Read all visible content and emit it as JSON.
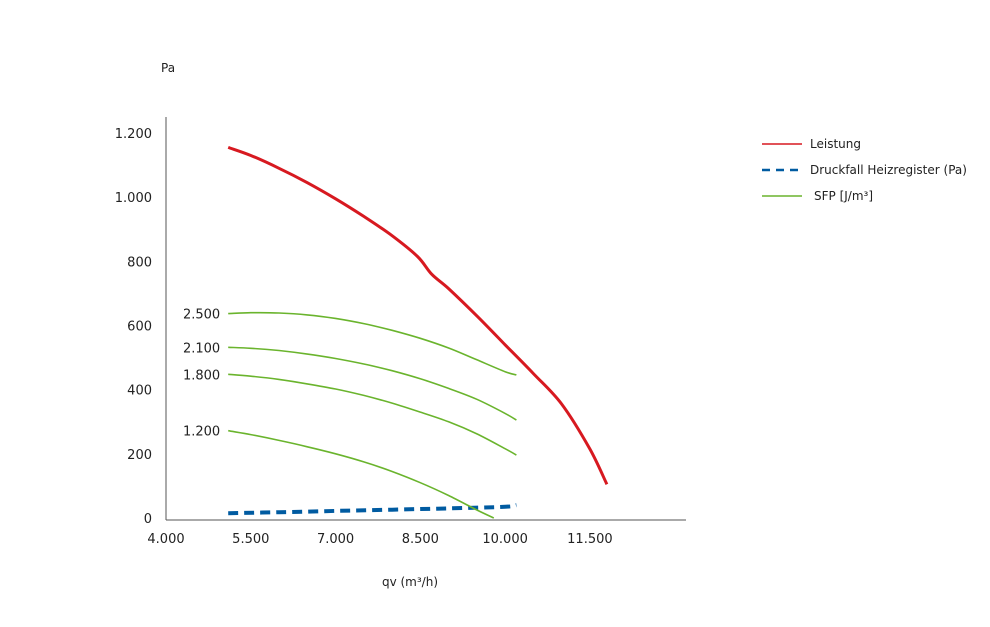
{
  "chart_data": {
    "type": "line",
    "ylabel": "Pa",
    "xlabel": "qv (m³/h)",
    "xlim": [
      4000,
      13200
    ],
    "ylim": [
      0,
      1250
    ],
    "x_ticks": [
      4000,
      5500,
      7000,
      8500,
      10000,
      11500
    ],
    "x_tick_labels": [
      "4.000",
      "5.500",
      "7.000",
      "8.500",
      "10.000",
      "11.500"
    ],
    "y_ticks": [
      0,
      200,
      400,
      600,
      800,
      1000,
      1200
    ],
    "y_tick_labels": [
      "0",
      "200",
      "400",
      "600",
      "800",
      "1.000",
      "1.200"
    ],
    "legend": {
      "placement": "right",
      "items": [
        {
          "label": "Leistung",
          "style": "solid",
          "color": "#d71920"
        },
        {
          "label": "Druckfall Heizregister (Pa)",
          "style": "dashed",
          "color": "#005ba1"
        },
        {
          "label": "SFP [J/m³]",
          "style": "solid",
          "color": "#6ab42d"
        }
      ]
    },
    "series": [
      {
        "name": "Leistung",
        "style": "solid",
        "color": "#d71920",
        "x": [
          5100,
          5500,
          6000,
          6500,
          7000,
          7500,
          8000,
          8450,
          8700,
          9000,
          9500,
          10000,
          10500,
          11000,
          11500,
          11800
        ],
        "y": [
          1155,
          1130,
          1090,
          1045,
          995,
          940,
          880,
          815,
          760,
          715,
          630,
          540,
          450,
          355,
          215,
          105
        ]
      },
      {
        "name": "Druckfall Heizregister (Pa)",
        "style": "dashed",
        "color": "#005ba1",
        "x": [
          5100,
          6000,
          7000,
          8000,
          9000,
          10000,
          10200
        ],
        "y": [
          15,
          18,
          22,
          26,
          30,
          35,
          40
        ]
      },
      {
        "style": "solid",
        "color": "#6ab42d",
        "x": [
          5100,
          5500,
          6000,
          6500,
          7000,
          7500,
          8000,
          8500,
          9000,
          9500,
          10000,
          10200
        ],
        "y": [
          637,
          640,
          639,
          633,
          622,
          606,
          585,
          560,
          530,
          493,
          456,
          446
        ]
      },
      {
        "style": "solid",
        "color": "#6ab42d",
        "x": [
          5100,
          5500,
          6000,
          6500,
          7000,
          7500,
          8000,
          8500,
          9000,
          9500,
          10000,
          10200
        ],
        "y": [
          532,
          529,
          522,
          511,
          497,
          480,
          459,
          434,
          404,
          370,
          326,
          305
        ]
      },
      {
        "style": "solid",
        "color": "#6ab42d",
        "x": [
          5100,
          5500,
          6000,
          6500,
          7000,
          7500,
          8000,
          8500,
          9000,
          9500,
          10000,
          10200
        ],
        "y": [
          448,
          442,
          432,
          418,
          402,
          382,
          358,
          330,
          300,
          262,
          216,
          196
        ]
      },
      {
        "style": "solid",
        "color": "#6ab42d",
        "x": [
          5100,
          5500,
          6000,
          6500,
          7000,
          7500,
          8000,
          8500,
          9000,
          9500,
          9800
        ],
        "y": [
          272,
          260,
          242,
          222,
          200,
          175,
          145,
          110,
          70,
          25,
          0
        ]
      }
    ],
    "curve_labels": [
      {
        "text": "2.500",
        "series_index": 2
      },
      {
        "text": "2.100",
        "series_index": 3
      },
      {
        "text": "1.800",
        "series_index": 4
      },
      {
        "text": "1.200",
        "series_index": 5
      }
    ],
    "grid": false
  }
}
